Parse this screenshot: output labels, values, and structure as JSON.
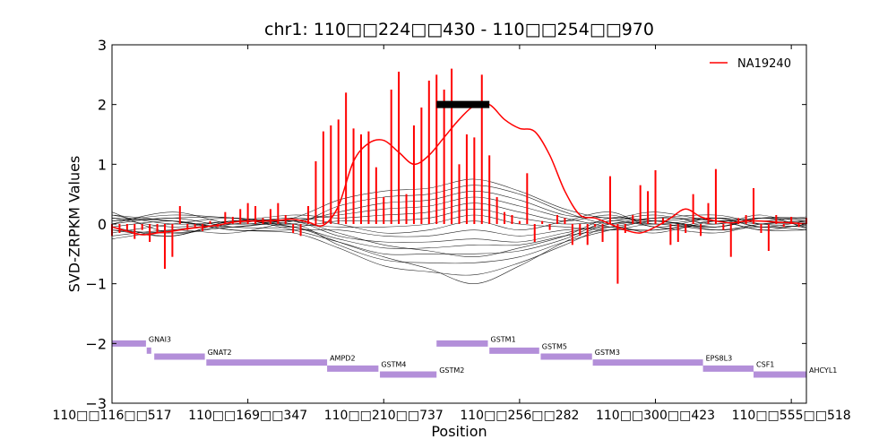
{
  "chart_data": {
    "type": "line",
    "title": "chr1: 110□□224□□430 - 110□□254□□970",
    "xlabel": "Position",
    "ylabel": "SVD-ZRPKM Values",
    "x_index_range": [
      0,
      92
    ],
    "ylim": [
      -3,
      3
    ],
    "yticks": [
      3,
      2,
      1,
      0,
      -1,
      -2,
      -3
    ],
    "ytick_labels": [
      "3",
      "2",
      "1",
      "0",
      "−1",
      "−2",
      "−3"
    ],
    "xtick_positions": [
      0,
      18,
      36,
      54,
      72,
      90
    ],
    "xtick_labels": [
      "110□□116□□517",
      "110□□169□□347",
      "110□□210□□737",
      "110□□256□□282",
      "110□□300□□423",
      "110□□555□□518"
    ],
    "legend": {
      "position": "top-right",
      "entries": [
        "NA19240"
      ]
    },
    "colors": {
      "highlight": "#ff0000",
      "background_series": "#000000",
      "gene": "#b38fd9",
      "call_bar": "#000000"
    },
    "highlight_series": {
      "name": "NA19240",
      "x": [
        0,
        2,
        4,
        6,
        8,
        10,
        12,
        14,
        16,
        18,
        20,
        22,
        24,
        26,
        28,
        30,
        32,
        34,
        36,
        38,
        40,
        42,
        44,
        46,
        48,
        50,
        52,
        54,
        56,
        58,
        60,
        62,
        64,
        66,
        68,
        70,
        72,
        74,
        76,
        78,
        80,
        82,
        84,
        86,
        88,
        90,
        92
      ],
      "y": [
        -0.05,
        -0.12,
        -0.18,
        -0.15,
        -0.12,
        -0.08,
        -0.05,
        -0.02,
        0.03,
        0.05,
        0.05,
        0.06,
        0.08,
        0.03,
        -0.02,
        0.3,
        1.05,
        1.35,
        1.4,
        1.2,
        1.0,
        1.15,
        1.45,
        1.75,
        1.98,
        2.0,
        1.75,
        1.6,
        1.55,
        1.15,
        0.55,
        0.15,
        0.1,
        0.0,
        -0.1,
        -0.15,
        -0.05,
        0.1,
        0.25,
        0.12,
        0.05,
        0.02,
        0.05,
        0.05,
        0.03,
        0.02,
        0.0
      ]
    },
    "highlight_stems": {
      "x": [
        0,
        1,
        2,
        3,
        4,
        5,
        6,
        7,
        8,
        9,
        10,
        11,
        12,
        13,
        14,
        15,
        16,
        17,
        18,
        19,
        20,
        21,
        22,
        23,
        24,
        25,
        26,
        27,
        28,
        29,
        30,
        31,
        32,
        33,
        34,
        35,
        36,
        37,
        38,
        39,
        40,
        41,
        42,
        43,
        44,
        45,
        46,
        47,
        48,
        49,
        50,
        51,
        52,
        53,
        54,
        55,
        56,
        57,
        58,
        59,
        60,
        61,
        62,
        63,
        64,
        65,
        66,
        67,
        68,
        69,
        70,
        71,
        72,
        73,
        74,
        75,
        76,
        77,
        78,
        79,
        80,
        81,
        82,
        83,
        84,
        85,
        86,
        87,
        88,
        89,
        90,
        91,
        92
      ],
      "y": [
        -0.2,
        -0.15,
        -0.1,
        -0.25,
        -0.1,
        -0.3,
        -0.15,
        -0.75,
        -0.55,
        0.3,
        -0.1,
        -0.05,
        -0.12,
        0.05,
        -0.05,
        0.2,
        0.12,
        0.25,
        0.35,
        0.3,
        0.1,
        0.25,
        0.35,
        0.15,
        -0.15,
        -0.2,
        0.3,
        1.05,
        1.55,
        1.65,
        1.75,
        2.2,
        1.6,
        1.5,
        1.55,
        0.95,
        0.45,
        2.25,
        2.55,
        0.5,
        1.65,
        1.95,
        2.4,
        2.5,
        2.25,
        2.6,
        1.0,
        1.5,
        1.45,
        2.5,
        1.15,
        0.45,
        0.2,
        0.15,
        0.05,
        0.85,
        -0.3,
        0.05,
        -0.1,
        0.15,
        0.1,
        -0.35,
        -0.2,
        -0.35,
        -0.05,
        -0.3,
        0.8,
        -1.0,
        -0.15,
        0.15,
        0.65,
        0.55,
        0.9,
        0.1,
        -0.35,
        -0.3,
        -0.15,
        0.5,
        -0.2,
        0.35,
        0.92,
        -0.1,
        -0.55,
        0.1,
        0.15,
        0.6,
        -0.15,
        -0.45,
        0.15,
        -0.05,
        0.12,
        -0.05,
        0.1
      ]
    },
    "background_series": [
      {
        "x": [
          0,
          8,
          16,
          24,
          30,
          36,
          42,
          48,
          54,
          60,
          66,
          72,
          80,
          86,
          92
        ],
        "y": [
          0.1,
          0.05,
          -0.05,
          0.1,
          0.4,
          0.55,
          0.6,
          0.75,
          0.55,
          0.25,
          0.1,
          0.2,
          0.05,
          0.1,
          0.05
        ]
      },
      {
        "x": [
          0,
          8,
          16,
          24,
          30,
          36,
          42,
          48,
          54,
          60,
          66,
          72,
          80,
          86,
          92
        ],
        "y": [
          -0.1,
          -0.2,
          0.05,
          0.0,
          0.3,
          0.45,
          0.5,
          0.65,
          0.5,
          0.2,
          0.0,
          0.1,
          0.15,
          0.0,
          -0.05
        ]
      },
      {
        "x": [
          0,
          8,
          16,
          24,
          30,
          36,
          42,
          48,
          54,
          60,
          66,
          72,
          80,
          86,
          92
        ],
        "y": [
          0.05,
          0.15,
          0.1,
          0.05,
          0.2,
          0.35,
          0.4,
          0.55,
          0.4,
          0.15,
          0.1,
          0.05,
          -0.05,
          0.1,
          0.1
        ]
      },
      {
        "x": [
          0,
          8,
          16,
          24,
          30,
          36,
          42,
          48,
          54,
          60,
          66,
          72,
          80,
          86,
          92
        ],
        "y": [
          -0.2,
          -0.1,
          -0.15,
          0.05,
          0.15,
          0.25,
          0.3,
          0.45,
          0.3,
          0.1,
          -0.05,
          -0.1,
          0.05,
          -0.1,
          0.0
        ]
      },
      {
        "x": [
          0,
          8,
          16,
          24,
          30,
          36,
          42,
          48,
          54,
          60,
          66,
          72,
          80,
          86,
          92
        ],
        "y": [
          0.15,
          0.0,
          0.05,
          0.15,
          0.1,
          0.15,
          0.2,
          0.35,
          0.2,
          0.05,
          0.15,
          0.0,
          0.1,
          0.05,
          0.12
        ]
      },
      {
        "x": [
          0,
          8,
          16,
          24,
          30,
          36,
          42,
          48,
          54,
          60,
          66,
          72,
          80,
          86,
          92
        ],
        "y": [
          0.0,
          0.1,
          -0.05,
          -0.05,
          0.05,
          0.05,
          0.1,
          0.25,
          0.1,
          0.0,
          0.05,
          0.15,
          0.0,
          0.15,
          -0.08
        ]
      },
      {
        "x": [
          0,
          8,
          16,
          24,
          30,
          36,
          42,
          48,
          54,
          60,
          66,
          72,
          80,
          86,
          92
        ],
        "y": [
          -0.15,
          0.0,
          0.1,
          0.0,
          -0.05,
          -0.05,
          0.0,
          0.15,
          0.0,
          -0.05,
          -0.1,
          0.0,
          -0.1,
          0.0,
          0.05
        ]
      },
      {
        "x": [
          0,
          8,
          16,
          24,
          30,
          36,
          42,
          48,
          54,
          60,
          66,
          72,
          80,
          86,
          92
        ],
        "y": [
          0.2,
          -0.15,
          0.0,
          0.1,
          0.0,
          -0.15,
          -0.1,
          0.05,
          -0.1,
          0.05,
          0.2,
          -0.05,
          0.1,
          -0.05,
          -0.02
        ]
      },
      {
        "x": [
          0,
          8,
          16,
          24,
          30,
          36,
          42,
          48,
          54,
          60,
          66,
          72,
          80,
          86,
          92
        ],
        "y": [
          -0.05,
          0.05,
          -0.1,
          -0.1,
          -0.1,
          -0.2,
          -0.2,
          -0.1,
          -0.2,
          -0.1,
          -0.05,
          0.05,
          -0.05,
          0.1,
          0.08
        ]
      },
      {
        "x": [
          0,
          8,
          16,
          24,
          30,
          36,
          42,
          48,
          54,
          60,
          66,
          72,
          80,
          86,
          92
        ],
        "y": [
          0.1,
          -0.05,
          0.05,
          0.05,
          -0.2,
          -0.3,
          -0.3,
          -0.25,
          -0.3,
          -0.15,
          0.0,
          0.1,
          0.05,
          -0.1,
          -0.1
        ]
      },
      {
        "x": [
          0,
          8,
          16,
          24,
          30,
          36,
          42,
          48,
          54,
          60,
          66,
          72,
          80,
          86,
          92
        ],
        "y": [
          -0.25,
          -0.1,
          0.0,
          -0.05,
          -0.25,
          -0.4,
          -0.4,
          -0.35,
          -0.35,
          -0.2,
          -0.1,
          -0.1,
          0.0,
          0.05,
          0.0
        ]
      },
      {
        "x": [
          0,
          8,
          16,
          24,
          30,
          36,
          42,
          48,
          54,
          60,
          66,
          72,
          80,
          86,
          92
        ],
        "y": [
          0.05,
          0.1,
          0.1,
          -0.1,
          -0.3,
          -0.5,
          -0.5,
          -0.5,
          -0.45,
          -0.25,
          0.05,
          -0.05,
          -0.15,
          0.0,
          0.05
        ]
      },
      {
        "x": [
          0,
          8,
          16,
          24,
          30,
          36,
          42,
          48,
          54,
          60,
          66,
          72,
          80,
          86,
          92
        ],
        "y": [
          -0.1,
          -0.15,
          -0.05,
          0.0,
          -0.35,
          -0.6,
          -0.65,
          -0.65,
          -0.55,
          -0.3,
          -0.1,
          0.05,
          -0.1,
          -0.05,
          -0.1
        ]
      },
      {
        "x": [
          0,
          8,
          16,
          24,
          30,
          36,
          42,
          48,
          54,
          60,
          66,
          72,
          80,
          86,
          92
        ],
        "y": [
          0.15,
          0.05,
          -0.1,
          -0.15,
          -0.4,
          -0.7,
          -0.8,
          -0.85,
          -0.65,
          -0.35,
          -0.05,
          -0.15,
          0.05,
          0.0,
          0.02
        ]
      },
      {
        "x": [
          0,
          8,
          16,
          24,
          30,
          36,
          42,
          48,
          54,
          60,
          66,
          72,
          80,
          86,
          92
        ],
        "y": [
          -0.05,
          -0.2,
          0.05,
          -0.05,
          -0.3,
          -0.55,
          -0.75,
          -1.0,
          -0.7,
          -0.3,
          0.0,
          0.0,
          -0.05,
          0.1,
          -0.05
        ]
      },
      {
        "x": [
          0,
          8,
          16,
          24,
          30,
          36,
          42,
          48,
          54,
          60,
          66,
          72,
          80,
          86,
          92
        ],
        "y": [
          0.0,
          0.2,
          0.0,
          0.05,
          -0.15,
          -0.35,
          -0.45,
          -0.55,
          -0.4,
          -0.2,
          0.1,
          0.05,
          0.1,
          -0.05,
          0.05
        ]
      }
    ],
    "call_bar": {
      "x_start": 43,
      "x_end": 50,
      "y": 2.0
    },
    "genes": [
      {
        "name": "GNAI3",
        "x_start": 0,
        "x_end": 4.5,
        "y": -2.0
      },
      {
        "name": "",
        "x_start": 4.6,
        "x_end": 5.2,
        "y": -2.12
      },
      {
        "name": "GNAT2",
        "x_start": 5.6,
        "x_end": 12.3,
        "y": -2.22
      },
      {
        "name": "AMPD2",
        "x_start": 12.5,
        "x_end": 28.5,
        "y": -2.32
      },
      {
        "name": "GSTM4",
        "x_start": 28.5,
        "x_end": 35.3,
        "y": -2.42
      },
      {
        "name": "GSTM2",
        "x_start": 35.5,
        "x_end": 43.0,
        "y": -2.52
      },
      {
        "name": "GSTM1",
        "x_start": 43.0,
        "x_end": 49.8,
        "y": -2.0
      },
      {
        "name": "GSTM5",
        "x_start": 50.0,
        "x_end": 56.6,
        "y": -2.12
      },
      {
        "name": "GSTM3",
        "x_start": 56.8,
        "x_end": 63.6,
        "y": -2.22
      },
      {
        "name": "EPS8L3",
        "x_start": 63.7,
        "x_end": 78.3,
        "y": -2.32
      },
      {
        "name": "CSF1",
        "x_start": 78.3,
        "x_end": 85.0,
        "y": -2.42
      },
      {
        "name": "AHCYL1",
        "x_start": 85.0,
        "x_end": 92.0,
        "y": -2.52
      }
    ]
  }
}
